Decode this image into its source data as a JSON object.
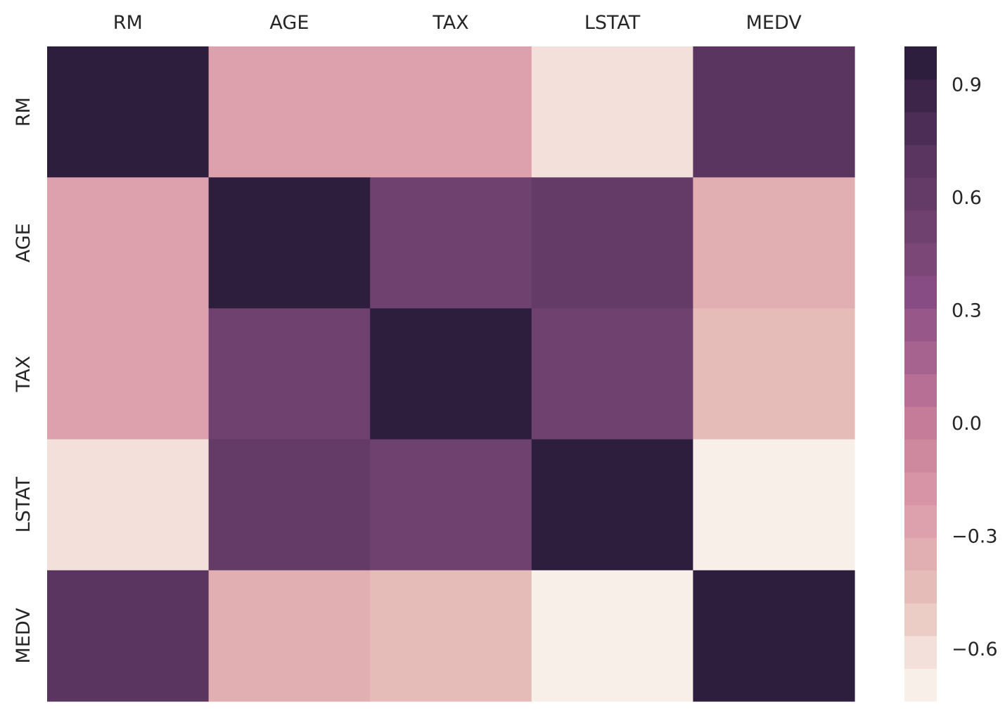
{
  "chart_data": {
    "type": "heatmap",
    "x_labels": [
      "RM",
      "AGE",
      "TAX",
      "LSTAT",
      "MEDV"
    ],
    "y_labels": [
      "RM",
      "AGE",
      "TAX",
      "LSTAT",
      "MEDV"
    ],
    "values": [
      [
        1.0,
        -0.24,
        -0.29,
        -0.61,
        0.7
      ],
      [
        -0.24,
        1.0,
        0.51,
        0.6,
        -0.38
      ],
      [
        -0.29,
        0.51,
        1.0,
        0.54,
        -0.47
      ],
      [
        -0.61,
        0.6,
        0.54,
        1.0,
        -0.74
      ],
      [
        0.7,
        -0.38,
        -0.47,
        -0.74,
        1.0
      ]
    ],
    "colorbar": {
      "vmin": -0.74,
      "vmax": 1.0,
      "n_bands": 20,
      "ticks": [
        0.9,
        0.6,
        0.3,
        0.0,
        -0.3,
        -0.6
      ],
      "tick_labels": [
        "0.9",
        "0.6",
        "0.3",
        "0.0",
        "−0.3",
        "−0.6"
      ],
      "colors": [
        "#f8efe9",
        "#f3e0da",
        "#eccdc6",
        "#e6bcb9",
        "#e1aeb1",
        "#dda0ad",
        "#d694a6",
        "#cf899e",
        "#c47c99",
        "#b76f95",
        "#a7638f",
        "#975889",
        "#874c83",
        "#7b4777",
        "#6f416f",
        "#643b67",
        "#59355f",
        "#4b2d55",
        "#3d2549",
        "#2d1e3e"
      ]
    },
    "x_axis_position": "top",
    "grid": false,
    "legend": "colorbar-right"
  }
}
